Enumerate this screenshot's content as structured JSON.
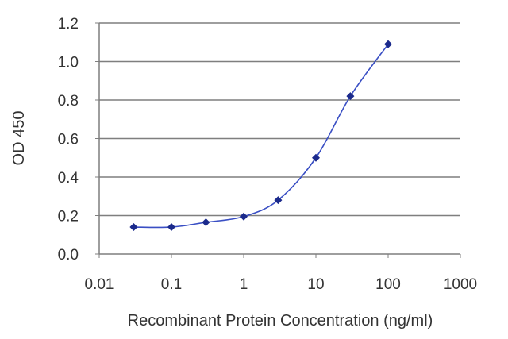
{
  "chart_data": {
    "type": "line",
    "title": "",
    "xlabel": "Recombinant Protein Concentration (ng/ml)",
    "ylabel": "OD 450",
    "x_scale": "log",
    "xlim": [
      0.01,
      1000
    ],
    "ylim": [
      0.0,
      1.2
    ],
    "x_ticks": [
      "0.01",
      "0.1",
      "1",
      "10",
      "100",
      "1000"
    ],
    "y_ticks": [
      "0.0",
      "0.2",
      "0.4",
      "0.6",
      "0.8",
      "1.0",
      "1.2"
    ],
    "grid": "horizontal",
    "legend": "none",
    "series": [
      {
        "x": [
          0.03,
          0.1,
          0.3,
          1,
          3,
          10,
          30,
          100
        ],
        "y": [
          0.14,
          0.14,
          0.165,
          0.195,
          0.28,
          0.5,
          0.82,
          1.09
        ]
      }
    ],
    "colors": {
      "line": "#3a4fc4",
      "marker": "#1b2a8c",
      "grid": "#7f7f7f",
      "axis": "#7f7f7f",
      "text": "#333333"
    }
  }
}
